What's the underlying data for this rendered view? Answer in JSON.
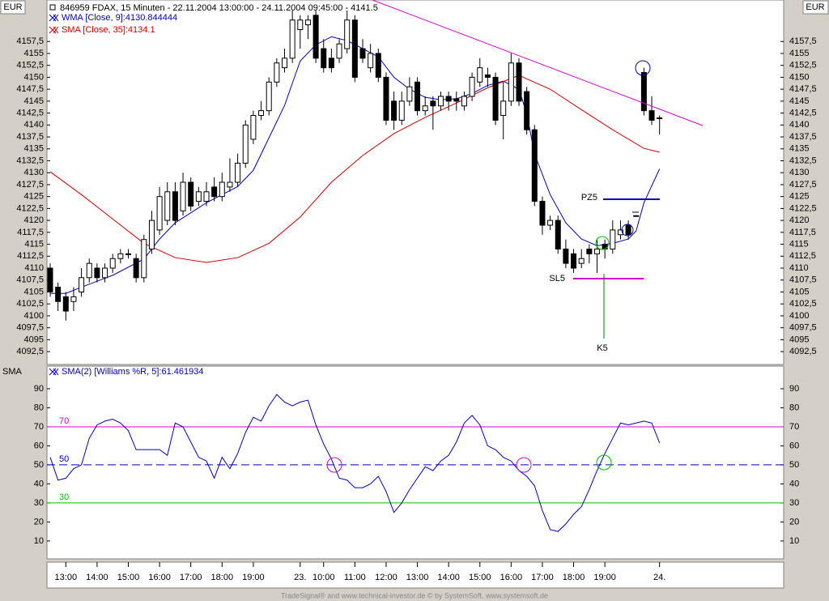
{
  "header": {
    "left_unit": "EUR",
    "right_unit": "EUR",
    "lower_label": "SMA",
    "footer": "TradeSignal® and www.technical-investor.de © by SystemSoft, www.systemsoft.de"
  },
  "annotations": {
    "pz": "PZ5",
    "sl": "SL5",
    "k": "K5"
  },
  "chart_data": [
    {
      "type": "candlestick",
      "title": "846959 FDAX, 15 Minuten - 22.11.2004 13:00:00 - 24.11.2004 09:45:00 - 4141.5",
      "open": [
        4110,
        4106,
        4104,
        4103,
        4105,
        4108,
        4110,
        4108,
        4110,
        4112,
        4113,
        4112,
        4108,
        4114,
        4118,
        4120,
        4126,
        4122,
        4128,
        4124,
        4124,
        4127,
        4125,
        4127,
        4128,
        4132,
        4137,
        4142,
        4143,
        4149,
        4152,
        4154,
        4160,
        4161,
        4163,
        4156,
        4154,
        4154,
        4156,
        4162,
        4156,
        4152,
        4155,
        4150,
        4145,
        4141,
        4145,
        4149,
        4143,
        4145,
        4144,
        4146,
        4145.5,
        4144,
        4146,
        4149,
        4150.5,
        4150,
        4142,
        4145,
        4153,
        4147,
        4139,
        4124,
        4119,
        4120,
        4114,
        4113,
        4111,
        4114,
        4113,
        4115,
        4114,
        4117,
        4119,
        4121,
        4151,
        4143,
        4141.5
      ],
      "high": [
        4111,
        4107,
        4105,
        4106,
        4110,
        4112,
        4111,
        4111,
        4113,
        4114,
        4114,
        4113,
        4117,
        4122,
        4127,
        4128,
        4128,
        4130,
        4129,
        4127,
        4128,
        4129,
        4130,
        4133,
        4134,
        4141,
        4143,
        4145,
        4150,
        4154,
        4156,
        4164,
        4163,
        4163,
        4164,
        4158,
        4156,
        4158,
        4164,
        4163,
        4158,
        4157,
        4156,
        4151,
        4147,
        4147,
        4150,
        4150,
        4146,
        4146,
        4147,
        4147,
        4147,
        4147,
        4151,
        4154,
        4152,
        4151,
        4149,
        4155,
        4154,
        4148,
        4140,
        4125,
        4121,
        4121,
        4116,
        4114,
        4114,
        4115,
        4116,
        4116,
        4120,
        4120,
        4120,
        4121,
        4152,
        4146,
        4142
      ],
      "low": [
        4104,
        4101,
        4099,
        4101,
        4104,
        4107,
        4107,
        4107,
        4109,
        4111,
        4112,
        4107,
        4107,
        4113,
        4117,
        4119,
        4119,
        4121,
        4122,
        4123,
        4123,
        4124,
        4124,
        4126,
        4127,
        4131,
        4136,
        4141,
        4142,
        4148,
        4151,
        4153,
        4156,
        4158,
        4153,
        4151,
        4151,
        4153,
        4155,
        4149,
        4153,
        4151,
        4149,
        4140,
        4139,
        4140,
        4144,
        4142,
        4142,
        4139,
        4143,
        4143,
        4143,
        4143,
        4145,
        4148,
        4148,
        4140,
        4137,
        4144,
        4144,
        4138,
        4123,
        4117,
        4118,
        4113,
        4110,
        4109,
        4110,
        4111,
        4109,
        4112,
        4113,
        4116,
        4116,
        4121,
        4142,
        4140,
        4138
      ],
      "close": [
        4105,
        4103,
        4101,
        4104,
        4108,
        4111,
        4108,
        4110,
        4112,
        4113,
        4113,
        4108,
        4116,
        4120,
        4125,
        4126,
        4120,
        4128,
        4123,
        4126,
        4126,
        4125,
        4128,
        4128,
        4132,
        4140,
        4142,
        4143,
        4149,
        4153,
        4154,
        4162,
        4162,
        4162,
        4154,
        4152,
        4152,
        4157,
        4162,
        4150,
        4154,
        4155,
        4150,
        4141,
        4141,
        4145,
        4148,
        4143,
        4144,
        4144,
        4146,
        4145,
        4145,
        4146,
        4150,
        4152,
        4150,
        4141,
        4145,
        4153,
        4145,
        4139,
        4124,
        4119,
        4120,
        4114,
        4111,
        4110,
        4112,
        4113,
        4114,
        4114,
        4118,
        4118,
        4117,
        4121,
        4143,
        4141,
        4141.5
      ],
      "up_color": "#ffffff",
      "down_color": "#000000",
      "series": [
        {
          "name": "WMA [Close, 9]:4130.844444",
          "color": "#0000c0",
          "x": [
            0,
            2,
            4,
            8,
            12,
            14,
            16,
            20,
            24,
            26,
            28,
            30,
            32,
            34,
            36,
            38,
            40,
            42,
            44,
            46,
            48,
            50,
            52,
            54,
            56,
            58,
            60,
            61,
            62,
            64,
            66,
            68,
            70,
            72,
            74,
            75,
            76,
            78
          ],
          "values": [
            4104.7,
            4104.7,
            4106,
            4108.5,
            4111.9,
            4116.1,
            4119.5,
            4123.7,
            4127.1,
            4130.5,
            4137.3,
            4144.1,
            4153.4,
            4156.8,
            4158.5,
            4157.7,
            4156,
            4154.3,
            4150,
            4147.5,
            4145.8,
            4145.3,
            4145.5,
            4146.6,
            4148.3,
            4149.2,
            4147.5,
            4142.4,
            4133.9,
            4125.4,
            4119.5,
            4116.1,
            4114.7,
            4115.2,
            4116.1,
            4117.8,
            4123.7,
            4130.8
          ]
        },
        {
          "name": "SMA [Close, 35]:4134.1",
          "color": "#d00000",
          "x": [
            0,
            4,
            8,
            12,
            16,
            20,
            24,
            28,
            32,
            36,
            40,
            44,
            48,
            52,
            56,
            60,
            64,
            68,
            72,
            76,
            78
          ],
          "values": [
            4130.2,
            4125.4,
            4120.3,
            4115.2,
            4112.2,
            4111.2,
            4112.2,
            4115.2,
            4120.7,
            4128,
            4133.6,
            4138.2,
            4141.6,
            4144.6,
            4147.8,
            4150.4,
            4147.5,
            4143.2,
            4139,
            4135.1,
            4134.3
          ]
        }
      ],
      "ylim": [
        4089.8,
        4166.2
      ],
      "yticks": [
        {
          "value": 4092.5,
          "label": "4092,5"
        },
        4095,
        {
          "value": 4097.5,
          "label": "4097,5"
        },
        4100,
        {
          "value": 4102.5,
          "label": "4102,5"
        },
        4105,
        {
          "value": 4107.5,
          "label": "4107,5"
        },
        4110,
        {
          "value": 4112.5,
          "label": "4112,5"
        },
        4115,
        {
          "value": 4117.5,
          "label": "4117,5"
        },
        4120,
        {
          "value": 4122.5,
          "label": "4122,5"
        },
        4125,
        {
          "value": 4127.5,
          "label": "4127,5"
        },
        4130,
        {
          "value": 4132.5,
          "label": "4132,5"
        },
        4135,
        {
          "value": 4137.5,
          "label": "4137,5"
        },
        4140,
        {
          "value": 4142.5,
          "label": "4142,5"
        },
        4145,
        {
          "value": 4147.5,
          "label": "4147,5"
        },
        4150,
        {
          "value": 4152.5,
          "label": "4152,5"
        },
        4155,
        {
          "value": 4157.5,
          "label": "4157,5"
        }
      ]
    },
    {
      "type": "line",
      "categories": [
        null,
        null,
        "13:00",
        null,
        null,
        null,
        "14:00",
        null,
        null,
        null,
        "15:00",
        null,
        null,
        null,
        "16:00",
        null,
        null,
        null,
        "17:00",
        null,
        null,
        null,
        "18:00",
        null,
        null,
        null,
        "19:00",
        null,
        null,
        null,
        null,
        null,
        "23.",
        null,
        null,
        "10:00",
        null,
        null,
        null,
        "11:00",
        null,
        null,
        null,
        "12:00",
        null,
        null,
        null,
        "13:00",
        null,
        null,
        null,
        "14:00",
        null,
        null,
        null,
        "15:00",
        null,
        null,
        null,
        "16:00",
        null,
        null,
        null,
        "17:00",
        null,
        null,
        null,
        "18:00",
        null,
        null,
        null,
        "19:00",
        null,
        null,
        null,
        null,
        null,
        null,
        "24."
      ],
      "series": [
        {
          "name": "SMA(2) [Williams %R, 5]:61.461934",
          "color": "#0000c0",
          "values": [
            54,
            42,
            43,
            48,
            50,
            64,
            71,
            73,
            74,
            72,
            68,
            58,
            58,
            58,
            58,
            55,
            72,
            70,
            62,
            54,
            52,
            43,
            54,
            48,
            56,
            67,
            75,
            73,
            81,
            87,
            83,
            81,
            83,
            84,
            71,
            61,
            53,
            43,
            42,
            38,
            38,
            40,
            44,
            36,
            25,
            30,
            37,
            43,
            49,
            47,
            52,
            55,
            62,
            72,
            76,
            71,
            60,
            58,
            54,
            52,
            47,
            44,
            39,
            26,
            16,
            15,
            19,
            24,
            28,
            37,
            47,
            56,
            64,
            72,
            71,
            72,
            73,
            72,
            61.5
          ]
        }
      ],
      "hlines": [
        {
          "value": 70,
          "color": "#d400d4",
          "dashed": false
        },
        {
          "value": 50,
          "color": "#0000c0",
          "dashed": true
        },
        {
          "value": 30,
          "color": "#00c000",
          "dashed": false
        }
      ],
      "ylim": [
        0.6,
        101.9
      ],
      "yticks": [
        10,
        20,
        30,
        40,
        50,
        60,
        70,
        80,
        90
      ]
    }
  ]
}
